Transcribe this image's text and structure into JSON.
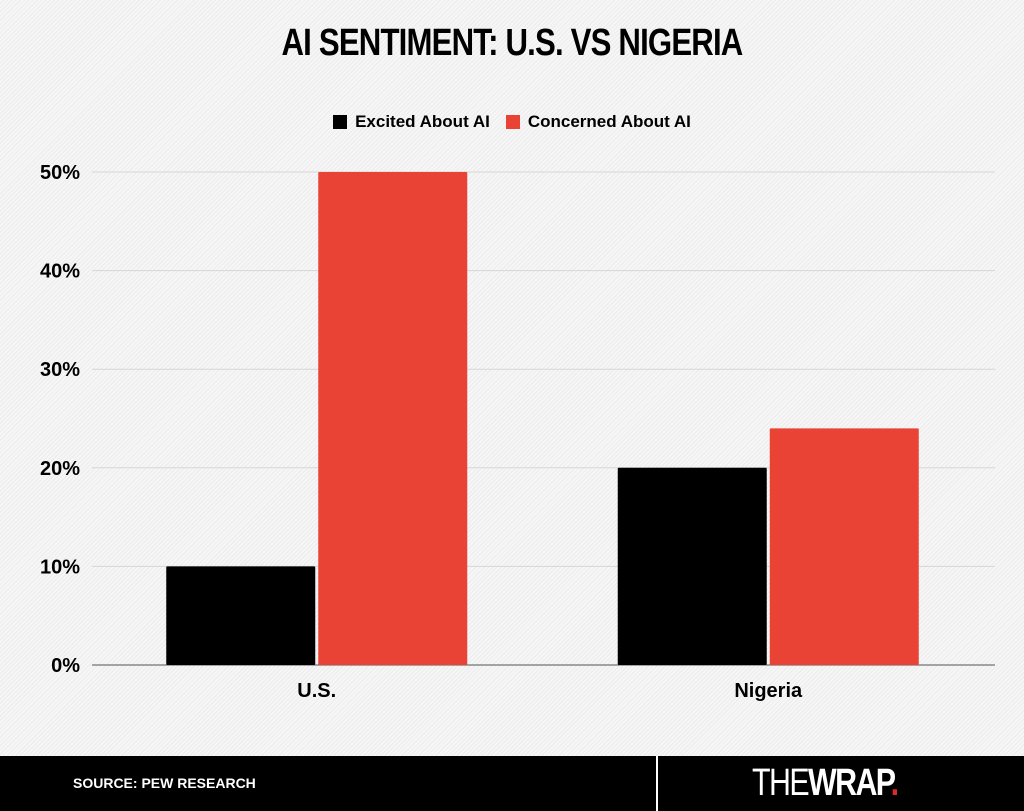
{
  "chart_data": {
    "type": "bar",
    "title": "AI SENTIMENT: U.S. VS NIGERIA",
    "categories": [
      "U.S.",
      "Nigeria"
    ],
    "series": [
      {
        "name": "Excited About AI",
        "color": "#000000",
        "values": [
          10,
          20
        ]
      },
      {
        "name": "Concerned About AI",
        "color": "#e94335",
        "values": [
          50,
          24
        ]
      }
    ],
    "yticks": [
      "0%",
      "10%",
      "20%",
      "30%",
      "40%",
      "50%"
    ],
    "ylim": [
      0,
      50
    ],
    "xlabel": "",
    "ylabel": "",
    "grid": true,
    "legend": "top-center"
  },
  "footer": {
    "source": "SOURCE: PEW RESEARCH",
    "logo": "THEWRAP."
  }
}
